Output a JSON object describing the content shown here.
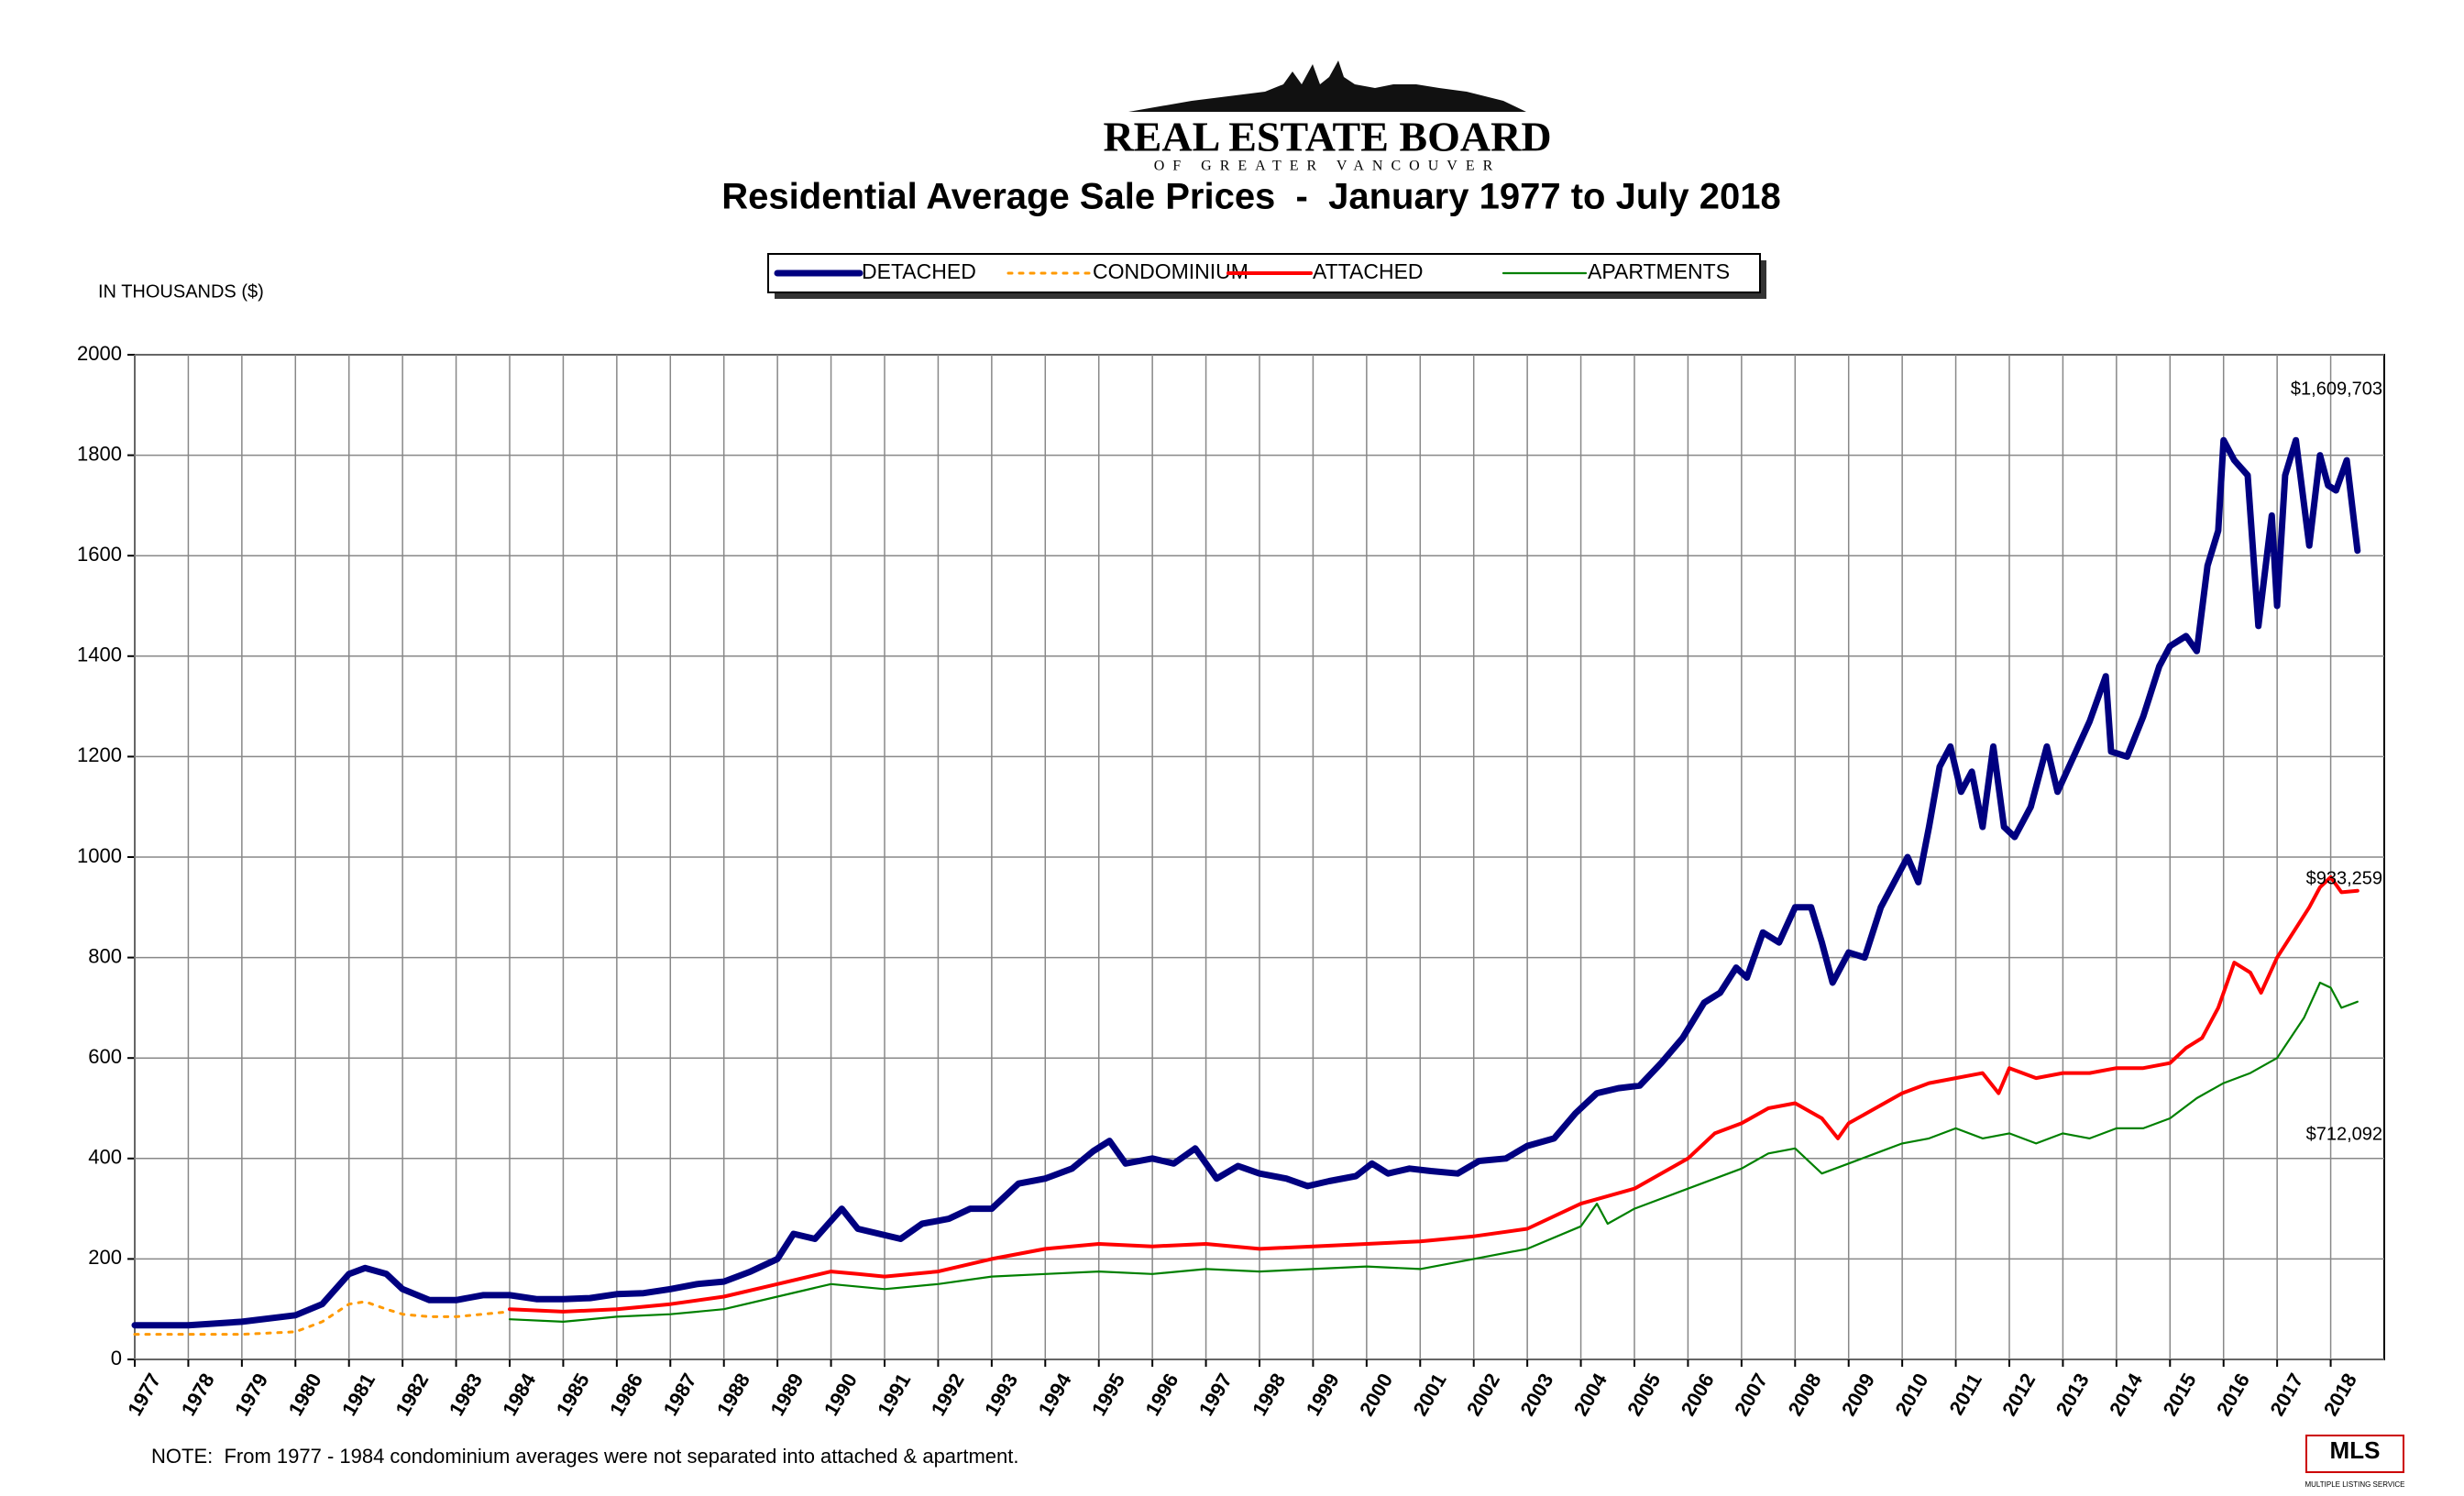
{
  "chart_data": {
    "type": "line",
    "logo_title": "REAL ESTATE BOARD",
    "logo_subtitle": "OF GREATER VANCOUVER",
    "title": "Residential Average Sale Prices  -  January 1977 to July 2018",
    "ylabel": "IN THOUSANDS ($)",
    "note": "NOTE:  From 1977 - 1984 condominium averages were not separated into attached & apartment.",
    "mls_logo": "MLS",
    "mls_caption": "MULTIPLE LISTING SERVICE",
    "annotations": [
      "$1,609,703",
      "$933,259",
      "$712,092"
    ],
    "xlim": [
      1977,
      2019
    ],
    "xticks": [
      1977,
      1978,
      1979,
      1980,
      1981,
      1982,
      1983,
      1984,
      1985,
      1986,
      1987,
      1988,
      1989,
      1990,
      1991,
      1992,
      1993,
      1994,
      1995,
      1996,
      1997,
      1998,
      1999,
      2000,
      2001,
      2002,
      2003,
      2004,
      2005,
      2006,
      2007,
      2008,
      2009,
      2010,
      2011,
      2012,
      2013,
      2014,
      2015,
      2016,
      2017,
      2018
    ],
    "ylim": [
      0,
      2000
    ],
    "yticks": [
      0,
      200,
      400,
      600,
      800,
      1000,
      1200,
      1400,
      1600,
      1800,
      2000
    ],
    "grid": true,
    "series": [
      {
        "name": "DETACHED",
        "color": "#000080",
        "style": "solid",
        "x": [
          1977,
          1978,
          1979,
          1980,
          1980.5,
          1981,
          1981.3,
          1981.7,
          1982,
          1982.5,
          1983,
          1983.5,
          1984,
          1984.5,
          1985,
          1985.5,
          1986,
          1986.5,
          1987,
          1987.5,
          1988,
          1988.5,
          1989,
          1989.3,
          1989.7,
          1990.2,
          1990.5,
          1990.9,
          1991.3,
          1991.7,
          1992.2,
          1992.6,
          1993,
          1993.5,
          1994,
          1994.5,
          1994.9,
          1995.2,
          1995.5,
          1996,
          1996.4,
          1996.8,
          1997.2,
          1997.6,
          1998,
          1998.5,
          1998.9,
          1999.3,
          1999.8,
          2000.1,
          2000.4,
          2000.8,
          2001.2,
          2001.7,
          2002.1,
          2002.6,
          2003,
          2003.5,
          2003.9,
          2004.3,
          2004.7,
          2005.1,
          2005.5,
          2005.9,
          2006.3,
          2006.6,
          2006.9,
          2007.1,
          2007.4,
          2007.7,
          2008,
          2008.3,
          2008.5,
          2008.7,
          2009,
          2009.3,
          2009.6,
          2009.9,
          2010.1,
          2010.3,
          2010.5,
          2010.7,
          2010.9,
          2011.1,
          2011.3,
          2011.5,
          2011.7,
          2011.9,
          2012.1,
          2012.4,
          2012.7,
          2012.9,
          2013.2,
          2013.5,
          2013.8,
          2013.9,
          2014.2,
          2014.5,
          2014.8,
          2015,
          2015.3,
          2015.5,
          2015.7,
          2015.9,
          2016,
          2016.2,
          2016.45,
          2016.65,
          2016.9,
          2017,
          2017.15,
          2017.35,
          2017.6,
          2017.8,
          2017.95,
          2018.1,
          2018.3,
          2018.5
        ],
        "values": [
          68,
          68,
          75,
          88,
          110,
          170,
          182,
          170,
          140,
          118,
          118,
          128,
          128,
          120,
          120,
          122,
          130,
          132,
          140,
          150,
          155,
          175,
          200,
          250,
          240,
          300,
          260,
          250,
          240,
          270,
          280,
          300,
          300,
          350,
          360,
          380,
          415,
          435,
          390,
          400,
          390,
          420,
          360,
          385,
          370,
          360,
          345,
          355,
          365,
          390,
          370,
          380,
          375,
          370,
          395,
          400,
          425,
          440,
          490,
          530,
          540,
          545,
          590,
          640,
          710,
          730,
          780,
          760,
          850,
          830,
          900,
          900,
          830,
          750,
          810,
          800,
          900,
          960,
          1000,
          950,
          1060,
          1180,
          1220,
          1130,
          1170,
          1060,
          1220,
          1060,
          1040,
          1100,
          1220,
          1130,
          1200,
          1270,
          1360,
          1210,
          1200,
          1280,
          1380,
          1420,
          1440,
          1410,
          1580,
          1650,
          1830,
          1790,
          1760,
          1460,
          1680,
          1500,
          1760,
          1830,
          1620,
          1800,
          1740,
          1730,
          1790,
          1610
        ]
      },
      {
        "name": "CONDOMINIUM",
        "color": "#ff9900",
        "style": "dotted",
        "x": [
          1977,
          1978,
          1979,
          1980,
          1980.5,
          1981,
          1981.3,
          1981.7,
          1982,
          1982.5,
          1983,
          1983.5,
          1984
        ],
        "values": [
          50,
          50,
          50,
          55,
          75,
          110,
          115,
          100,
          90,
          85,
          85,
          90,
          95
        ]
      },
      {
        "name": "ATTACHED",
        "color": "#ff0000",
        "style": "solid",
        "x": [
          1984,
          1985,
          1986,
          1987,
          1988,
          1989,
          1990,
          1990.5,
          1991,
          1992,
          1993,
          1994,
          1995,
          1996,
          1997,
          1998,
          1999,
          2000,
          2001,
          2002,
          2003,
          2004,
          2005,
          2005.5,
          2006,
          2006.5,
          2007,
          2007.5,
          2008,
          2008.5,
          2008.8,
          2009,
          2009.5,
          2010,
          2010.5,
          2011,
          2011.5,
          2011.8,
          2012,
          2012.5,
          2013,
          2013.5,
          2014,
          2014.5,
          2015,
          2015.3,
          2015.6,
          2015.9,
          2016.2,
          2016.5,
          2016.7,
          2017,
          2017.3,
          2017.6,
          2017.8,
          2018,
          2018.2,
          2018.5
        ],
        "values": [
          100,
          95,
          100,
          110,
          125,
          150,
          175,
          170,
          165,
          175,
          200,
          220,
          230,
          225,
          230,
          220,
          225,
          230,
          235,
          245,
          260,
          310,
          340,
          370,
          400,
          450,
          470,
          500,
          510,
          480,
          440,
          470,
          500,
          530,
          550,
          560,
          570,
          530,
          580,
          560,
          570,
          570,
          580,
          580,
          590,
          620,
          640,
          700,
          790,
          770,
          730,
          800,
          850,
          900,
          940,
          960,
          930,
          933
        ]
      },
      {
        "name": "APARTMENTS",
        "color": "#008000",
        "style": "solid",
        "x": [
          1984,
          1985,
          1986,
          1987,
          1988,
          1989,
          1990,
          1991,
          1992,
          1993,
          1994,
          1995,
          1996,
          1997,
          1998,
          1999,
          2000,
          2001,
          2002,
          2003,
          2004,
          2004.3,
          2004.5,
          2005,
          2006,
          2007,
          2007.5,
          2008,
          2008.5,
          2009,
          2009.5,
          2010,
          2010.5,
          2011,
          2011.5,
          2012,
          2012.5,
          2013,
          2013.5,
          2014,
          2014.5,
          2015,
          2015.5,
          2016,
          2016.5,
          2017,
          2017.5,
          2017.8,
          2018,
          2018.2,
          2018.5
        ],
        "values": [
          80,
          75,
          85,
          90,
          100,
          125,
          150,
          140,
          150,
          165,
          170,
          175,
          170,
          180,
          175,
          180,
          185,
          180,
          200,
          220,
          265,
          310,
          270,
          300,
          340,
          380,
          410,
          420,
          370,
          390,
          410,
          430,
          440,
          460,
          440,
          450,
          430,
          450,
          440,
          460,
          460,
          480,
          520,
          550,
          570,
          600,
          680,
          750,
          740,
          700,
          712
        ]
      }
    ]
  }
}
